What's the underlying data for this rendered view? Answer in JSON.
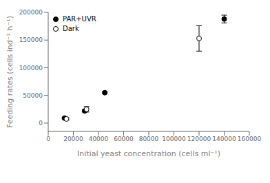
{
  "chart_data": {
    "type": "scatter",
    "xlabel": "Initial yeast concentration (cells ml⁻¹)",
    "ylabel": "Feeding rates (cells ind⁻¹ h⁻¹)",
    "series": [
      {
        "name": "PAR+UVR",
        "color": "black",
        "marker": "circle",
        "x": [
          13000,
          29000,
          45000,
          140000
        ],
        "values": [
          9000,
          22000,
          55000,
          188000
        ],
        "yerr": [
          1500,
          2000,
          1500,
          7000
        ]
      },
      {
        "name": "Dark",
        "color": "white",
        "marker": "circle",
        "x": [
          14500,
          30500,
          120000
        ],
        "values": [
          7500,
          25000,
          153000
        ],
        "yerr": [
          2000,
          5000,
          23000
        ]
      }
    ],
    "xlim": [
      0,
      160000
    ],
    "ylim": [
      -15000,
      200000
    ],
    "xticks": [
      0,
      20000,
      40000,
      60000,
      80000,
      100000,
      120000,
      140000,
      160000
    ],
    "yticks": [
      0,
      50000,
      100000,
      150000,
      200000
    ],
    "legend": "upper left",
    "grid": false
  }
}
